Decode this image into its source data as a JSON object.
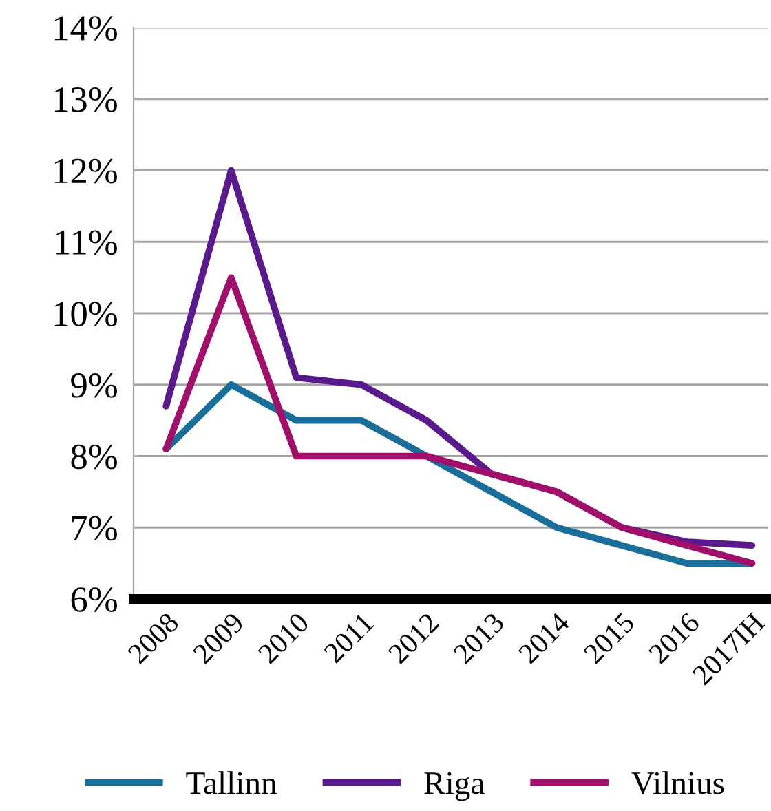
{
  "chart_data": {
    "type": "line",
    "categories": [
      "2008",
      "2009",
      "2010",
      "2011",
      "2012",
      "2013",
      "2014",
      "2015",
      "2016",
      "2017IH"
    ],
    "series": [
      {
        "name": "Tallinn",
        "color": "#1a6e9a",
        "values": [
          8.1,
          9.0,
          8.5,
          8.5,
          8.0,
          7.5,
          7.0,
          6.75,
          6.5,
          6.5
        ]
      },
      {
        "name": "Riga",
        "color": "#5b1a8c",
        "values": [
          8.7,
          12.0,
          9.1,
          9.0,
          8.5,
          7.75,
          7.5,
          7.0,
          6.8,
          6.75
        ]
      },
      {
        "name": "Vilnius",
        "color": "#a0106a",
        "values": [
          8.1,
          10.5,
          8.0,
          8.0,
          8.0,
          7.75,
          7.5,
          7.0,
          6.75,
          6.5
        ]
      }
    ],
    "ylim": [
      6,
      14
    ],
    "yticks": [
      {
        "value": 6,
        "label": "6%"
      },
      {
        "value": 7,
        "label": "7%"
      },
      {
        "value": 8,
        "label": "8%"
      },
      {
        "value": 9,
        "label": "9%"
      },
      {
        "value": 10,
        "label": "10%"
      },
      {
        "value": 11,
        "label": "11%"
      },
      {
        "value": 12,
        "label": "12%"
      },
      {
        "value": 13,
        "label": "13%"
      },
      {
        "value": 14,
        "label": "14%"
      }
    ],
    "grid": "y",
    "legend": "bottom",
    "marker": "none",
    "line_style": "solid"
  }
}
